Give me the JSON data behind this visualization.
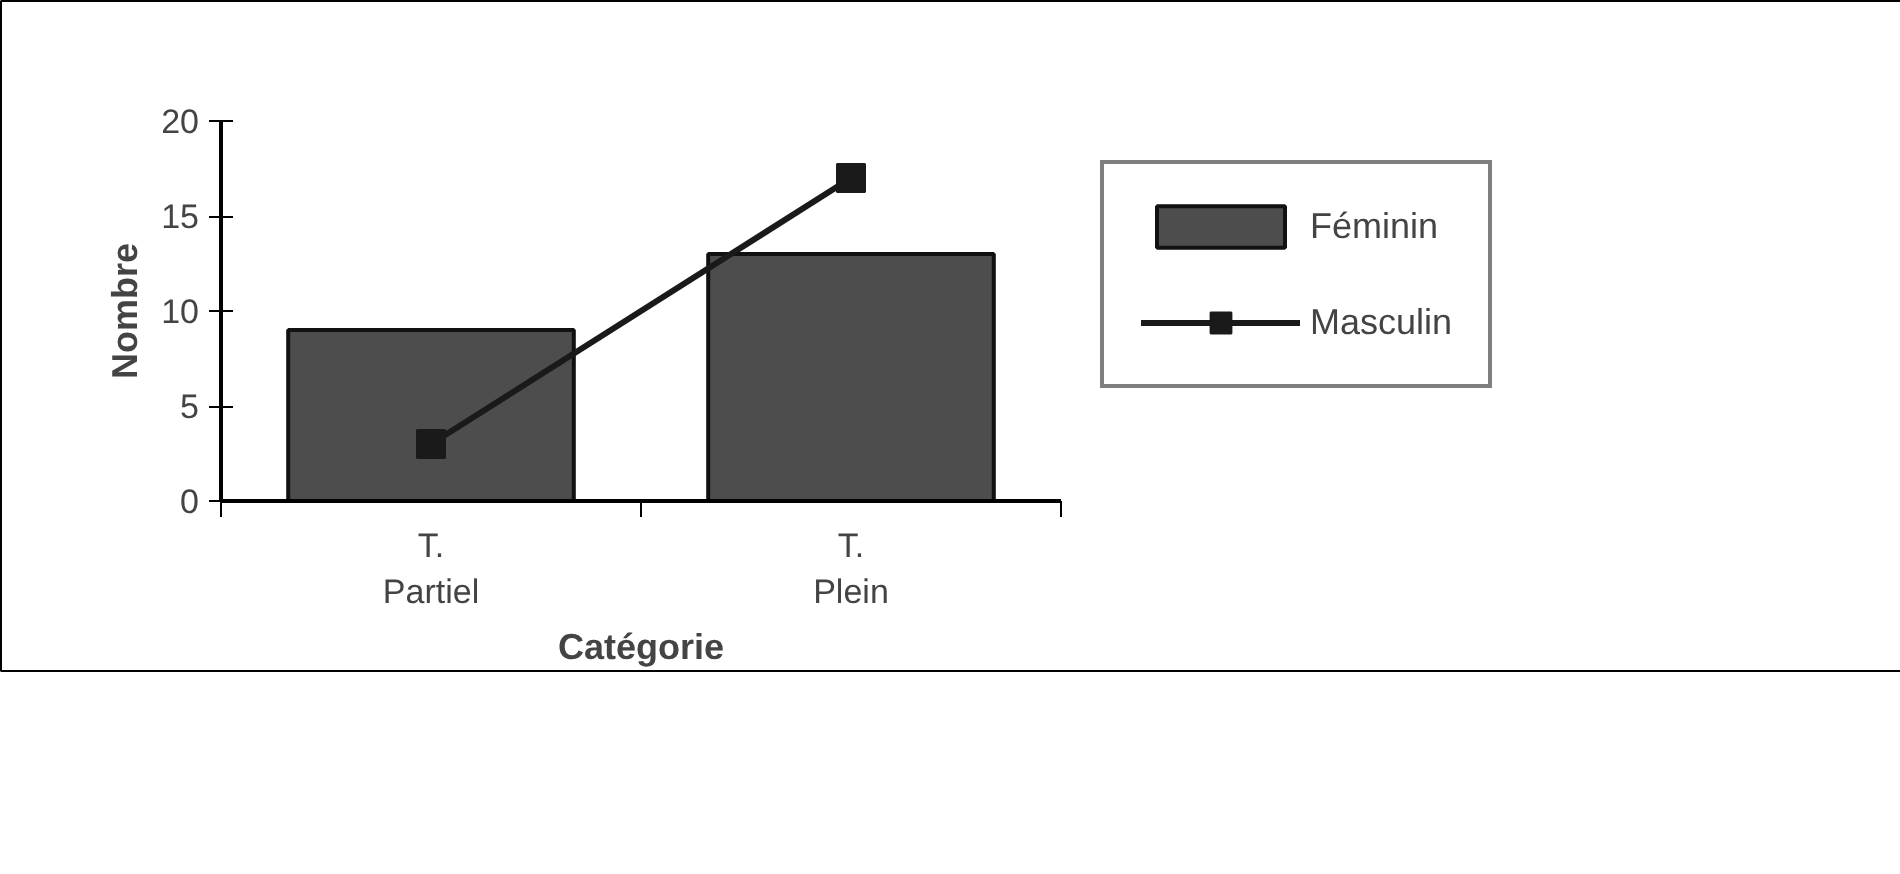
{
  "chart_data": {
    "type": "bar",
    "categories": [
      "T. Partiel",
      "T. Plein"
    ],
    "series": [
      {
        "name": "Féminin",
        "color": "#4d4d4d",
        "values": [
          9,
          13
        ]
      },
      {
        "name": "Masculin",
        "type": "line",
        "color": "#1a1a1a",
        "values": [
          3,
          17
        ]
      }
    ],
    "xlabel": "Catégorie",
    "ylabel": "Nombre",
    "ylim": [
      0,
      20
    ],
    "yticks": [
      0,
      5,
      10,
      15,
      20
    ],
    "grid": false,
    "legend": "right",
    "marker": "square"
  }
}
